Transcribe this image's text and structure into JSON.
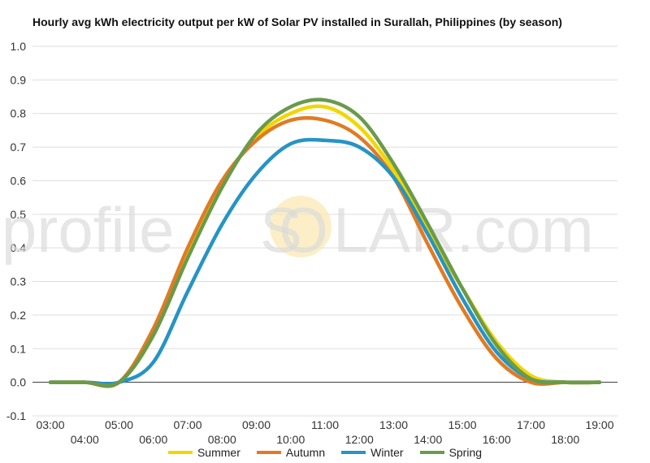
{
  "chart_data": {
    "type": "line",
    "title": "Hourly avg kWh electricity output per kW of Solar PV installed in Surallah, Philippines (by season)",
    "xlabel": "",
    "ylabel": "",
    "ylim": [
      -0.1,
      1.0
    ],
    "y_ticks": [
      "-0.1",
      "0.0",
      "0.1",
      "0.2",
      "0.3",
      "0.4",
      "0.5",
      "0.6",
      "0.7",
      "0.8",
      "0.9",
      "1.0"
    ],
    "x": [
      3,
      4,
      5,
      6,
      7,
      8,
      9,
      10,
      11,
      12,
      13,
      14,
      15,
      16,
      17,
      18,
      19
    ],
    "x_tick_labels": [
      "03:00",
      "04:00",
      "05:00",
      "06:00",
      "07:00",
      "08:00",
      "09:00",
      "10:00",
      "11:00",
      "12:00",
      "13:00",
      "14:00",
      "15:00",
      "16:00",
      "17:00",
      "18:00",
      "19:00"
    ],
    "grid": true,
    "legend_position": "bottom",
    "watermark": {
      "left": "profile",
      "sun": "SO",
      "right": "LAR.com"
    },
    "series": [
      {
        "name": "Summer",
        "color": "#f2d600",
        "values": [
          0.0,
          0.0,
          0.0,
          0.14,
          0.38,
          0.59,
          0.73,
          0.8,
          0.82,
          0.76,
          0.63,
          0.45,
          0.28,
          0.12,
          0.02,
          0.0,
          0.0
        ]
      },
      {
        "name": "Autumn",
        "color": "#e07b24",
        "values": [
          0.0,
          0.0,
          0.0,
          0.16,
          0.4,
          0.6,
          0.72,
          0.78,
          0.78,
          0.73,
          0.61,
          0.41,
          0.22,
          0.07,
          0.0,
          0.0,
          0.0
        ]
      },
      {
        "name": "Winter",
        "color": "#2694c4",
        "values": [
          0.0,
          0.0,
          0.0,
          0.06,
          0.27,
          0.47,
          0.62,
          0.71,
          0.72,
          0.7,
          0.61,
          0.44,
          0.25,
          0.09,
          0.01,
          0.0,
          0.0
        ]
      },
      {
        "name": "Spring",
        "color": "#6a9a4b",
        "values": [
          0.0,
          0.0,
          0.0,
          0.14,
          0.37,
          0.58,
          0.74,
          0.82,
          0.84,
          0.79,
          0.65,
          0.47,
          0.28,
          0.11,
          0.01,
          0.0,
          0.0
        ]
      }
    ]
  }
}
